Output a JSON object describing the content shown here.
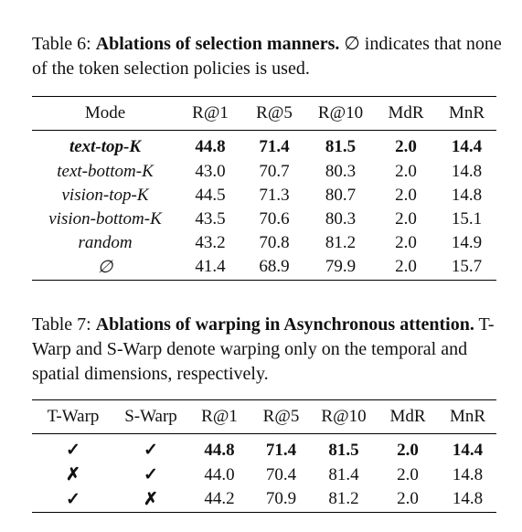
{
  "table6": {
    "caption": {
      "label": "Table 6:",
      "title": "Ablations of selection manners.",
      "text": "∅ indicates that none of the token selection policies is used."
    },
    "header": [
      "Mode",
      "R@1",
      "R@5",
      "R@10",
      "MdR",
      "MnR"
    ],
    "rows": [
      [
        "text-top-K",
        "44.8",
        "71.4",
        "81.5",
        "2.0",
        "14.4"
      ],
      [
        "text-bottom-K",
        "43.0",
        "70.7",
        "80.3",
        "2.0",
        "14.8"
      ],
      [
        "vision-top-K",
        "44.5",
        "71.3",
        "80.7",
        "2.0",
        "14.8"
      ],
      [
        "vision-bottom-K",
        "43.5",
        "70.6",
        "80.3",
        "2.0",
        "15.1"
      ],
      [
        "random",
        "43.2",
        "70.8",
        "81.2",
        "2.0",
        "14.9"
      ],
      [
        "∅",
        "41.4",
        "68.9",
        "79.9",
        "2.0",
        "15.7"
      ]
    ]
  },
  "table7": {
    "caption": {
      "label": "Table 7:",
      "title": "Ablations of warping in Asynchronous attention.",
      "text": "T-Warp and S-Warp denote warping only on the temporal and spatial dimensions, respectively."
    },
    "header": [
      "T-Warp",
      "S-Warp",
      "R@1",
      "R@5",
      "R@10",
      "MdR",
      "MnR"
    ],
    "rows": [
      [
        "✓",
        "✓",
        "44.8",
        "71.4",
        "81.5",
        "2.0",
        "14.4"
      ],
      [
        "✗",
        "✓",
        "44.0",
        "70.4",
        "81.4",
        "2.0",
        "14.8"
      ],
      [
        "✓",
        "✗",
        "44.2",
        "70.9",
        "81.2",
        "2.0",
        "14.8"
      ]
    ]
  }
}
